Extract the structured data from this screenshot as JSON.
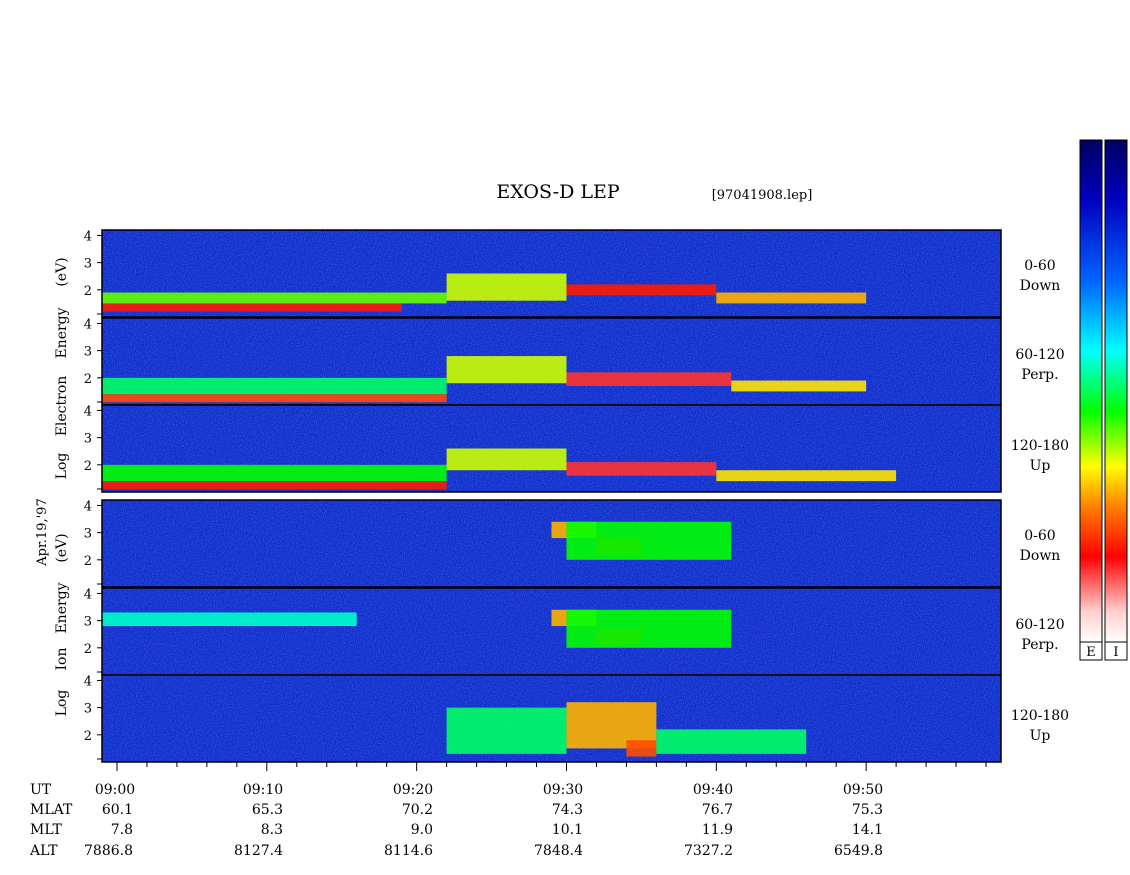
{
  "title": "EXOS-D LEP",
  "file_label": "[97041908.lep]",
  "date_label": "Apr.19,'97",
  "electron": {
    "ylabel": [
      "Log",
      "Electron",
      "Energy",
      "(eV)"
    ],
    "panels": [
      {
        "angle": "0-60",
        "dir": "Down"
      },
      {
        "angle": "60-120",
        "dir": "Perp."
      },
      {
        "angle": "120-180",
        "dir": "Up"
      }
    ]
  },
  "ion": {
    "ylabel": [
      "Log",
      "Ion",
      "Energy",
      "(eV)"
    ],
    "panels": [
      {
        "angle": "0-60",
        "dir": "Down"
      },
      {
        "angle": "60-120",
        "dir": "Perp."
      },
      {
        "angle": "120-180",
        "dir": "Up"
      }
    ]
  },
  "colorbars": [
    {
      "label": "E"
    },
    {
      "label": "I"
    }
  ],
  "ephemeris": {
    "row_labels": [
      "UT",
      "MLAT",
      "MLT",
      "ALT"
    ],
    "columns": [
      {
        "UT": "09:00",
        "MLAT": "60.1",
        "MLT": "7.8",
        "ALT": "7886.8"
      },
      {
        "UT": "09:10",
        "MLAT": "65.3",
        "MLT": "8.3",
        "ALT": "8127.4"
      },
      {
        "UT": "09:20",
        "MLAT": "70.2",
        "MLT": "9.0",
        "ALT": "8114.6"
      },
      {
        "UT": "09:30",
        "MLAT": "74.3",
        "MLT": "10.1",
        "ALT": "7848.4"
      },
      {
        "UT": "09:40",
        "MLAT": "76.7",
        "MLT": "11.9",
        "ALT": "7327.2"
      },
      {
        "UT": "09:50",
        "MLAT": "75.3",
        "MLT": "14.1",
        "ALT": "6549.8"
      }
    ]
  },
  "colors": {
    "background": "#1428c8",
    "colormap": [
      "#ffffff",
      "#ff0000",
      "#ff8000",
      "#ffff00",
      "#00ff00",
      "#00ffff",
      "#0064ff",
      "#0000c0",
      "#000060"
    ]
  },
  "chart_data": {
    "type": "heatmap",
    "x_units": "UT (minutes after 09:00)",
    "xlim": [
      -1,
      59
    ],
    "x_tick_labels": [
      "09:00",
      "09:10",
      "09:20",
      "09:30",
      "09:40",
      "09:50"
    ],
    "x_tick_values": [
      0,
      10,
      20,
      30,
      40,
      50
    ],
    "ylim": [
      1,
      4.2
    ],
    "y_ticks": [
      2,
      3,
      4
    ],
    "y_scale": "log10 energy (eV)",
    "series": [
      {
        "species": "electron",
        "angle": "0-60",
        "bands": [
          {
            "x": [
              -1,
              19
            ],
            "y": [
              1.2,
              1.5
            ],
            "level": 0.15
          },
          {
            "x": [
              -1,
              22
            ],
            "y": [
              1.5,
              1.9
            ],
            "level": 0.45
          },
          {
            "x": [
              22,
              30
            ],
            "y": [
              1.6,
              2.6
            ],
            "level": 0.4
          },
          {
            "x": [
              30,
              40
            ],
            "y": [
              1.8,
              2.2
            ],
            "level": 0.15
          },
          {
            "x": [
              40,
              50
            ],
            "y": [
              1.5,
              1.9
            ],
            "level": 0.3
          }
        ]
      },
      {
        "species": "electron",
        "angle": "60-120",
        "bands": [
          {
            "x": [
              -1,
              22
            ],
            "y": [
              1.1,
              1.4
            ],
            "level": 0.2
          },
          {
            "x": [
              -1,
              22
            ],
            "y": [
              1.4,
              2.0
            ],
            "level": 0.55
          },
          {
            "x": [
              22,
              30
            ],
            "y": [
              1.8,
              2.8
            ],
            "level": 0.4
          },
          {
            "x": [
              30,
              41
            ],
            "y": [
              1.7,
              2.2
            ],
            "level": 0.1
          },
          {
            "x": [
              41,
              50
            ],
            "y": [
              1.5,
              1.9
            ],
            "level": 0.35
          }
        ]
      },
      {
        "species": "electron",
        "angle": "120-180",
        "bands": [
          {
            "x": [
              -1,
              22
            ],
            "y": [
              1.1,
              1.4
            ],
            "level": 0.15
          },
          {
            "x": [
              -1,
              22
            ],
            "y": [
              1.4,
              2.0
            ],
            "level": 0.5
          },
          {
            "x": [
              22,
              30
            ],
            "y": [
              1.8,
              2.6
            ],
            "level": 0.4
          },
          {
            "x": [
              30,
              40
            ],
            "y": [
              1.6,
              2.1
            ],
            "level": 0.1
          },
          {
            "x": [
              40,
              52
            ],
            "y": [
              1.4,
              1.8
            ],
            "level": 0.35
          }
        ]
      },
      {
        "species": "ion",
        "angle": "0-60",
        "bands": [
          {
            "x": [
              29,
              32
            ],
            "y": [
              2.8,
              3.4
            ],
            "level": 0.3
          },
          {
            "x": [
              32,
              35
            ],
            "y": [
              2.2,
              2.8
            ],
            "level": 0.15
          },
          {
            "x": [
              30,
              41
            ],
            "y": [
              2.0,
              3.4
            ],
            "level": 0.5
          }
        ]
      },
      {
        "species": "ion",
        "angle": "60-120",
        "bands": [
          {
            "x": [
              -1,
              16
            ],
            "y": [
              2.8,
              3.3
            ],
            "level": 0.6
          },
          {
            "x": [
              29,
              32
            ],
            "y": [
              2.8,
              3.4
            ],
            "level": 0.3
          },
          {
            "x": [
              32,
              35
            ],
            "y": [
              2.1,
              2.7
            ],
            "level": 0.15
          },
          {
            "x": [
              30,
              41
            ],
            "y": [
              2.0,
              3.4
            ],
            "level": 0.5
          }
        ]
      },
      {
        "species": "ion",
        "angle": "120-180",
        "bands": [
          {
            "x": [
              22,
              30
            ],
            "y": [
              1.3,
              3.0
            ],
            "level": 0.55
          },
          {
            "x": [
              30,
              36
            ],
            "y": [
              1.5,
              3.2
            ],
            "level": 0.3
          },
          {
            "x": [
              34,
              36
            ],
            "y": [
              1.2,
              1.8
            ],
            "level": 0.2
          },
          {
            "x": [
              36,
              46
            ],
            "y": [
              1.3,
              2.2
            ],
            "level": 0.55
          }
        ]
      }
    ]
  }
}
